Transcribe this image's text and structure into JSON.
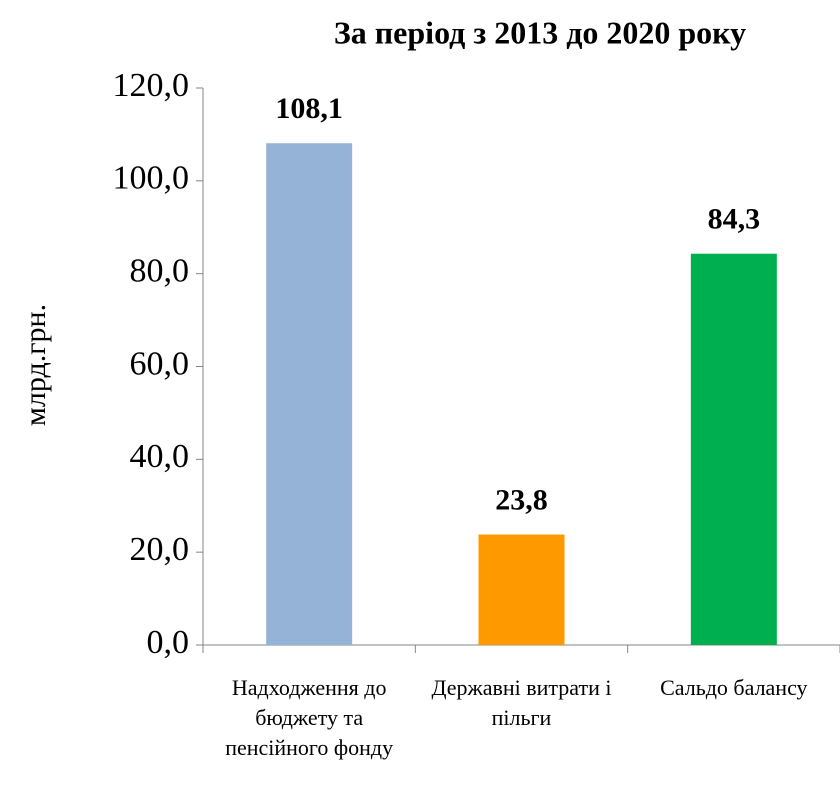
{
  "chart_data": {
    "type": "bar",
    "title": "За період з 2013 до 2020 року",
    "y_label": "млрд.грн.",
    "categories": [
      "Надходження до бюджету та пенсійного фонду",
      "Державні витрати і пільги",
      "Сальдо балансу"
    ],
    "values": [
      108.1,
      23.8,
      84.3
    ],
    "value_labels": [
      "108,1",
      "23,8",
      "84,3"
    ],
    "colors": [
      "#95b3d7",
      "#ff9900",
      "#00b050"
    ],
    "ylim": [
      0,
      120
    ],
    "yticks": [
      {
        "value": 0,
        "label": "0,0"
      },
      {
        "value": 20,
        "label": "20,0"
      },
      {
        "value": 40,
        "label": "40,0"
      },
      {
        "value": 60,
        "label": "60,0"
      },
      {
        "value": 80,
        "label": "80,0"
      },
      {
        "value": 100,
        "label": "100,0"
      },
      {
        "value": 120,
        "label": "120,0"
      }
    ],
    "grid": false
  }
}
